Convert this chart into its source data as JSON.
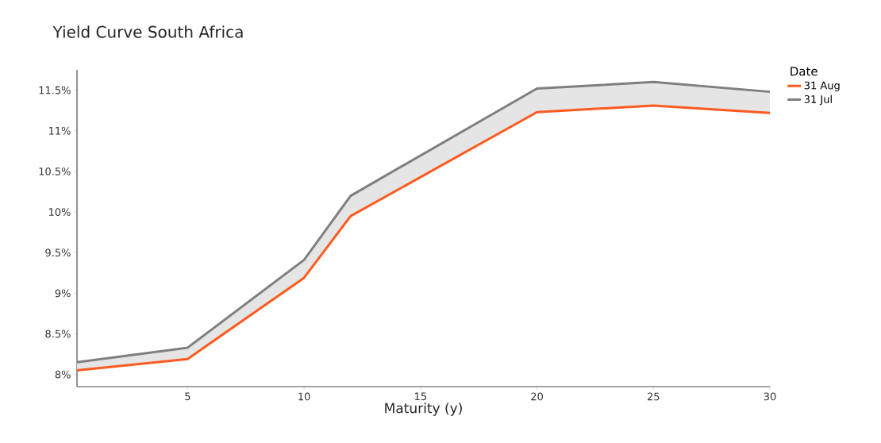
{
  "chart_data": {
    "type": "line",
    "title": "Yield Curve South Africa",
    "xlabel": "Maturity (y)",
    "legend_title": "Date",
    "x": [
      0.25,
      5,
      10,
      12,
      20,
      25,
      30
    ],
    "series": [
      {
        "name": "31 Aug",
        "color": "#ff5a1f",
        "values": [
          8.05,
          8.19,
          9.19,
          9.95,
          11.23,
          11.31,
          11.22
        ]
      },
      {
        "name": "31 Jul",
        "color": "#7f7f7f",
        "values": [
          8.15,
          8.33,
          9.41,
          10.2,
          11.52,
          11.6,
          11.48
        ],
        "lower": [
          8.05,
          8.19,
          9.19,
          9.95,
          11.23,
          11.31,
          11.22
        ],
        "upper": [
          8.15,
          8.33,
          9.41,
          10.2,
          11.52,
          11.6,
          11.48
        ]
      }
    ],
    "xlim": [
      0.25,
      30
    ],
    "ylim": [
      7.85,
      11.75
    ],
    "xticks": [
      5,
      10,
      15,
      20,
      25,
      30
    ],
    "yticks": [
      {
        "value": 8,
        "label": "8%"
      },
      {
        "value": 8.5,
        "label": "8.5%"
      },
      {
        "value": 9,
        "label": "9%"
      },
      {
        "value": 9.5,
        "label": "9.5%"
      },
      {
        "value": 10,
        "label": "10%"
      },
      {
        "value": 10.5,
        "label": "10.5%"
      },
      {
        "value": 11,
        "label": "11%"
      },
      {
        "value": 11.5,
        "label": "11.5%"
      }
    ],
    "grid": false,
    "legend": "top right",
    "marker": "none",
    "line_style": "solid"
  }
}
